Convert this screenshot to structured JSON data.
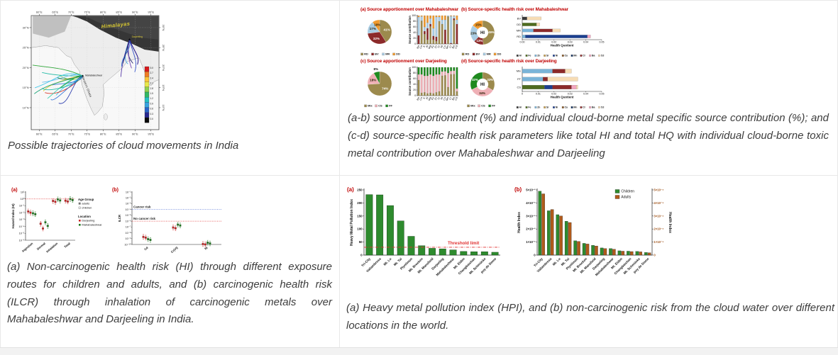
{
  "page": {
    "background": "#ffffff",
    "grid_border": "#e8e8e8",
    "footer_bg": "#f2f2f2",
    "caption_color": "#3d3d3d",
    "panel_label_color": "#c00000"
  },
  "captions": {
    "map": "Possible trajectories of cloud movements in India",
    "apportionment": "(a-b) source apportionment (%) and individual cloud-borne metal specific source contribution (%); and (c-d) source-specific health risk parameters like total HI and total HQ with individual cloud-borne toxic metal contribution over Mahabaleshwar and Darjeeling",
    "health_risk": "(a) Non-carcinogenic health risk (HI) through different exposure routes for children and adults, and (b) carcinogenic health risk (ILCR) through inhalation of carcinogenic metals over Mahabaleshwar and Darjeeling in India.",
    "hpi": "(a) Heavy metal pollution index (HPI), and (b) non-carcinogenic risk from the cloud water over different locations in the world."
  },
  "chart_data": [
    {
      "id": "map",
      "type": "map",
      "x_ticks": [
        "60°E",
        "65°E",
        "70°E",
        "75°E",
        "80°E",
        "85°E",
        "90°E",
        "95°E"
      ],
      "y_ticks": [
        "30°N",
        "25°N",
        "20°N",
        "15°N",
        "10°N"
      ],
      "place_labels": {
        "himalayas": "Himalayas",
        "darjeeling": "Darjeeling",
        "mahabaleshwar": "Mahabaleshwar",
        "western_ghats": "Western Ghats"
      },
      "colorbar": {
        "values": [
          "3.0",
          "2.7",
          "2.4",
          "2.1",
          "1.8",
          "1.5",
          "1.2",
          "0.9",
          "0.6",
          "0.3",
          "0.0"
        ],
        "colors": [
          "#d7191c",
          "#f07c24",
          "#fdc53a",
          "#e8e84a",
          "#8fd14f",
          "#33b863",
          "#25c1c1",
          "#38a3e0",
          "#2a64c8",
          "#28288f",
          "#0a0a0a"
        ]
      },
      "trajectory_palette_west": [
        "#1fa02a",
        "#12b5a0",
        "#31c3e8",
        "#2a6fd6",
        "#7ec845",
        "#e0c81f",
        "#d62a1c",
        "#0fa070",
        "#2233aa",
        "#35d0b0",
        "#64b6e8",
        "#1c7c3c"
      ],
      "trajectory_palette_east": [
        "#2a1a8f",
        "#4a2aa0",
        "#2a4ac8",
        "#35a0e0",
        "#1c1c70",
        "#6a3ab0",
        "#2868d0",
        "#101060"
      ]
    },
    {
      "id": "pie_mb",
      "type": "pie",
      "display_title": "(a)  Source apportionment over Mahabaleshwar",
      "slices": [
        {
          "label": "RD",
          "value": 41,
          "color": "#9c8a4d"
        },
        {
          "label": "BV",
          "value": 32,
          "color": "#8c2a2a"
        },
        {
          "label": "MR",
          "value": 17,
          "color": "#a9cce3"
        },
        {
          "label": "DD",
          "value": 10,
          "color": "#f09a2e"
        }
      ]
    },
    {
      "id": "stack_mb",
      "type": "stacked-column",
      "ylabel": "Source contribution",
      "ylim": [
        0,
        100
      ],
      "yticks": [
        0,
        20,
        40,
        60,
        80,
        100
      ],
      "categories": [
        "Na",
        "Ca",
        "K",
        "Al",
        "Mg",
        "Fe",
        "Zn",
        "Sr",
        "Ni",
        "Cu",
        "Mn",
        "Cr",
        "Ba",
        "Cd"
      ],
      "series": [
        "RD",
        "BV",
        "MR",
        "DD"
      ],
      "colors": {
        "RD": "#9c8a4d",
        "BV": "#8c2a2a",
        "MR": "#a9cce3",
        "DD": "#f09a2e"
      },
      "values": [
        [
          0,
          30,
          65,
          5
        ],
        [
          82,
          0,
          15,
          3
        ],
        [
          35,
          10,
          15,
          40
        ],
        [
          15,
          40,
          20,
          25
        ],
        [
          62,
          8,
          20,
          10
        ],
        [
          15,
          13,
          27,
          45
        ],
        [
          10,
          15,
          70,
          5
        ],
        [
          80,
          0,
          15,
          5
        ],
        [
          70,
          0,
          15,
          15
        ],
        [
          0,
          50,
          35,
          15
        ],
        [
          97,
          0,
          3,
          0
        ],
        [
          0,
          3,
          95,
          2
        ],
        [
          84,
          6,
          8,
          2
        ],
        [
          0,
          70,
          15,
          15
        ]
      ]
    },
    {
      "id": "donut_mb",
      "type": "donut",
      "display_title": "(b)  Source-specific health risk over Mahabaleshwar",
      "center_label": "HI",
      "slices": [
        {
          "label": "RD",
          "value": 49,
          "color": "#9c8a4d"
        },
        {
          "label": "BV",
          "value": 13,
          "color": "#8c2a2a"
        },
        {
          "label": "MR",
          "value": 23,
          "color": "#a9cce3"
        },
        {
          "label": "DD",
          "value": 15,
          "color": "#f09a2e"
        }
      ]
    },
    {
      "id": "hq_mb",
      "type": "hbar-stacked",
      "xlabel": "Health Quotient",
      "xlim": [
        0,
        0.05
      ],
      "xticks": [
        "0.00",
        "0.01",
        "0.02",
        "0.03",
        "0.04",
        "0.05"
      ],
      "categories": [
        "BV",
        "DD",
        "MR",
        "RD"
      ],
      "metals": [
        {
          "name": "Al",
          "color": "#3a3a3a"
        },
        {
          "name": "Fe",
          "color": "#4e6b1f"
        },
        {
          "name": "Zn",
          "color": "#7ab4d8"
        },
        {
          "name": "Sr",
          "color": "#c8a050"
        },
        {
          "name": "Ni",
          "color": "#1c3f8f"
        },
        {
          "name": "Cu",
          "color": "#8a5a2a"
        },
        {
          "name": "Mn",
          "color": "#12305e"
        },
        {
          "name": "Cr",
          "color": "#8c2a2a"
        },
        {
          "name": "Ba",
          "color": "#f2a6c0"
        },
        {
          "name": "Cd",
          "color": "#f6dcb4"
        }
      ],
      "bars": {
        "BV": [
          [
            "Al",
            0.003
          ],
          [
            "Cd",
            0.009
          ]
        ],
        "DD": [
          [
            "Fe",
            0.009
          ],
          [
            "Cd",
            0.002
          ]
        ],
        "MR": [
          [
            "Zn",
            0.007
          ],
          [
            "Cr",
            0.012
          ],
          [
            "Cd",
            0.005
          ]
        ],
        "RD": [
          [
            "Zn",
            0.002
          ],
          [
            "Ni",
            0.039
          ],
          [
            "Ba",
            0.002
          ]
        ]
      }
    },
    {
      "id": "pie_dj",
      "type": "pie",
      "display_title": "(c)  Source apportionment over Darjeeling",
      "slices": [
        {
          "label": "Mix",
          "value": 74,
          "color": "#9c8a4d"
        },
        {
          "label": "CS",
          "value": 18,
          "color": "#efb0b6"
        },
        {
          "label": "FF",
          "value": 8,
          "color": "#1f8a1f"
        }
      ]
    },
    {
      "id": "stack_dj",
      "type": "stacked-column",
      "ylabel": "Source contribution",
      "ylim": [
        0,
        100
      ],
      "yticks": [
        0,
        20,
        40,
        60,
        80,
        100
      ],
      "categories": [
        "Na",
        "Ca",
        "K",
        "Al",
        "Mg",
        "Fe",
        "Zn",
        "Sr",
        "Ni",
        "Cu",
        "Mn",
        "Cr",
        "Ba",
        "Cd"
      ],
      "series": [
        "Mix",
        "CS",
        "FF"
      ],
      "colors": {
        "Mix": "#9c8a4d",
        "CS": "#efb0b6",
        "FF": "#1f8a1f"
      },
      "values": [
        [
          55,
          20,
          25
        ],
        [
          10,
          65,
          25
        ],
        [
          12,
          58,
          30
        ],
        [
          8,
          62,
          30
        ],
        [
          10,
          65,
          25
        ],
        [
          8,
          62,
          30
        ],
        [
          12,
          63,
          25
        ],
        [
          15,
          60,
          25
        ],
        [
          70,
          15,
          15
        ],
        [
          72,
          14,
          14
        ],
        [
          30,
          50,
          20
        ],
        [
          75,
          12,
          13
        ],
        [
          76,
          12,
          12
        ],
        [
          15,
          10,
          75
        ]
      ]
    },
    {
      "id": "donut_dj",
      "type": "donut",
      "display_title": "(d)  Source-specific health risk over Darjeeling",
      "center_label": "HI",
      "slices": [
        {
          "label": "Mix",
          "value": 33,
          "color": "#9c8a4d"
        },
        {
          "label": "CS",
          "value": 34,
          "color": "#efb0b6"
        },
        {
          "label": "FF",
          "value": 32,
          "color": "#1f8a1f"
        }
      ]
    },
    {
      "id": "hq_dj",
      "type": "hbar-stacked",
      "xlabel": "Health Quotient",
      "xlim": [
        0,
        0.05
      ],
      "xticks": [
        "0",
        "0.01",
        "0.02",
        "0.03",
        "0.04",
        "0.05"
      ],
      "categories": [
        "Mix",
        "FF",
        "CS"
      ],
      "metals": [
        {
          "name": "Al",
          "color": "#3a3a3a"
        },
        {
          "name": "Fe",
          "color": "#4e6b1f"
        },
        {
          "name": "Zn",
          "color": "#7ab4d8"
        },
        {
          "name": "Sr",
          "color": "#c8a050"
        },
        {
          "name": "Ni",
          "color": "#1c3f8f"
        },
        {
          "name": "Cu",
          "color": "#8a5a2a"
        },
        {
          "name": "Mn",
          "color": "#12305e"
        },
        {
          "name": "Cr",
          "color": "#8c2a2a"
        },
        {
          "name": "Ba",
          "color": "#f2a6c0"
        },
        {
          "name": "Cd",
          "color": "#f6dcb4"
        }
      ],
      "bars": {
        "Mix": [
          [
            "Zn",
            0.019
          ],
          [
            "Cr",
            0.008
          ],
          [
            "Cd",
            0.004
          ]
        ],
        "FF": [
          [
            "Zn",
            0.013
          ],
          [
            "Cr",
            0.003
          ],
          [
            "Cd",
            0.019
          ]
        ],
        "CS": [
          [
            "Fe",
            0.014
          ],
          [
            "Ni",
            0.005
          ],
          [
            "Cr",
            0.012
          ],
          [
            "Ba",
            0.003
          ],
          [
            "Cd",
            0.001
          ]
        ]
      }
    },
    {
      "id": "hi_scatter",
      "type": "scatter-log",
      "panel": "(a)",
      "ylabel": "Hazard Index (HI)",
      "y_exponents": [
        1,
        0,
        -1,
        -2,
        -3,
        -4,
        -5,
        -6
      ],
      "threshold": {
        "value_exp": 0,
        "color": "#e03030"
      },
      "categories": [
        "Ingestion",
        "Dermal",
        "Inhalation",
        "Total"
      ],
      "legend": {
        "age_title": "Age Group",
        "ages": [
          "adults",
          "children"
        ],
        "loc_title": "Location",
        "locations": [
          {
            "name": "Darjeeling",
            "color": "#cc2222"
          },
          {
            "name": "Mahabaleshwar",
            "color": "#1f7a1f"
          }
        ]
      },
      "points": {
        "Darjeeling": {
          "adults": [
            0.015,
            0.00025,
            0.5,
            0.55
          ],
          "children": [
            0.01,
            5e-05,
            0.38,
            0.42
          ]
        },
        "Mahabaleshwar": {
          "adults": [
            0.008,
            0.0004,
            0.85,
            0.95
          ],
          "children": [
            0.006,
            0.00012,
            0.6,
            0.68
          ]
        }
      }
    },
    {
      "id": "ilcr_scatter",
      "type": "scatter-log",
      "panel": "(b)",
      "ylabel": "ILCR",
      "y_exponents": [
        -1,
        -2,
        -3,
        -4,
        -5,
        -6,
        -7,
        -8,
        -9,
        -10
      ],
      "lines": [
        {
          "label": "Cancer risk",
          "value_exp": -4,
          "color": "#3355cc"
        },
        {
          "label": "No cancer risk",
          "value_exp": -6,
          "color": "#e03030"
        }
      ],
      "categories": [
        "Cd",
        "Cr(VI)",
        "Ni"
      ],
      "points": {
        "Darjeeling": {
          "adults": [
            2e-09,
            8e-08,
            1.2e-10
          ],
          "children": [
            1.5e-09,
            6e-08,
            1e-10
          ]
        },
        "Mahabaleshwar": {
          "adults": [
            8e-10,
            2.5e-07,
            2e-10
          ],
          "children": [
            6e-10,
            1.8e-07,
            1.5e-10
          ]
        }
      }
    },
    {
      "id": "hpi_bar",
      "type": "bar",
      "panel": "(a)",
      "ylabel": "Heavy Metal Pollution Index",
      "ylim": [
        0,
        250
      ],
      "yticks": [
        0,
        50,
        100,
        150,
        200,
        250
      ],
      "categories": [
        "Tri-City",
        "Vallambrosa",
        "Mt. Lu",
        "Mt. Tai",
        "Plynlimon",
        "Mt. Brocken",
        "Mt. Mansfield",
        "Darjeeling",
        "Mahabaleshwar",
        "Mt. Elden",
        "Changbaishan",
        "Mt. Schmücke",
        "puy de Dome"
      ],
      "values": [
        232,
        231,
        190,
        131,
        72,
        36,
        26,
        24,
        20,
        14,
        13,
        13,
        11
      ],
      "bar_color": "#2e8b2e",
      "threshold": {
        "value": 30,
        "label": "Threshold limit",
        "color": "#e03030"
      }
    },
    {
      "id": "hi_bar",
      "type": "grouped-bar",
      "panel": "(b)",
      "ylabel_left": "Health Index",
      "ylabel_right": "Health Index",
      "left_ticks": [
        "0",
        "1×10⁻²",
        "2×10⁻²",
        "3×10⁻²",
        "4×10⁻²",
        "5×10⁻²"
      ],
      "right_ticks": [
        "0",
        "1×10⁻⁴",
        "2×10⁻⁴",
        "3×10⁻⁴",
        "4×10⁻⁴",
        "5×10⁻⁴"
      ],
      "axis_max": 5,
      "categories": [
        "Tri-City",
        "Vallambrosa",
        "Mt. Lu",
        "Mt. Tai",
        "Plynlimon",
        "Mt. Brocken",
        "Mt. Mansfield",
        "Darjeeling",
        "Mahabaleshwar",
        "Mt. Elden",
        "Changbaishan",
        "Mt. Schmücke",
        "puy de Dome"
      ],
      "series": [
        {
          "name": "Children",
          "color": "#2e8b2e",
          "values": [
            4.9,
            3.4,
            3.1,
            2.6,
            1.1,
            0.9,
            0.75,
            0.55,
            0.5,
            0.33,
            0.3,
            0.28,
            0.2
          ]
        },
        {
          "name": "Adults",
          "color": "#b05a1a",
          "values": [
            4.7,
            3.5,
            3.0,
            2.5,
            1.05,
            0.85,
            0.7,
            0.5,
            0.45,
            0.3,
            0.27,
            0.25,
            0.18
          ]
        }
      ]
    }
  ]
}
